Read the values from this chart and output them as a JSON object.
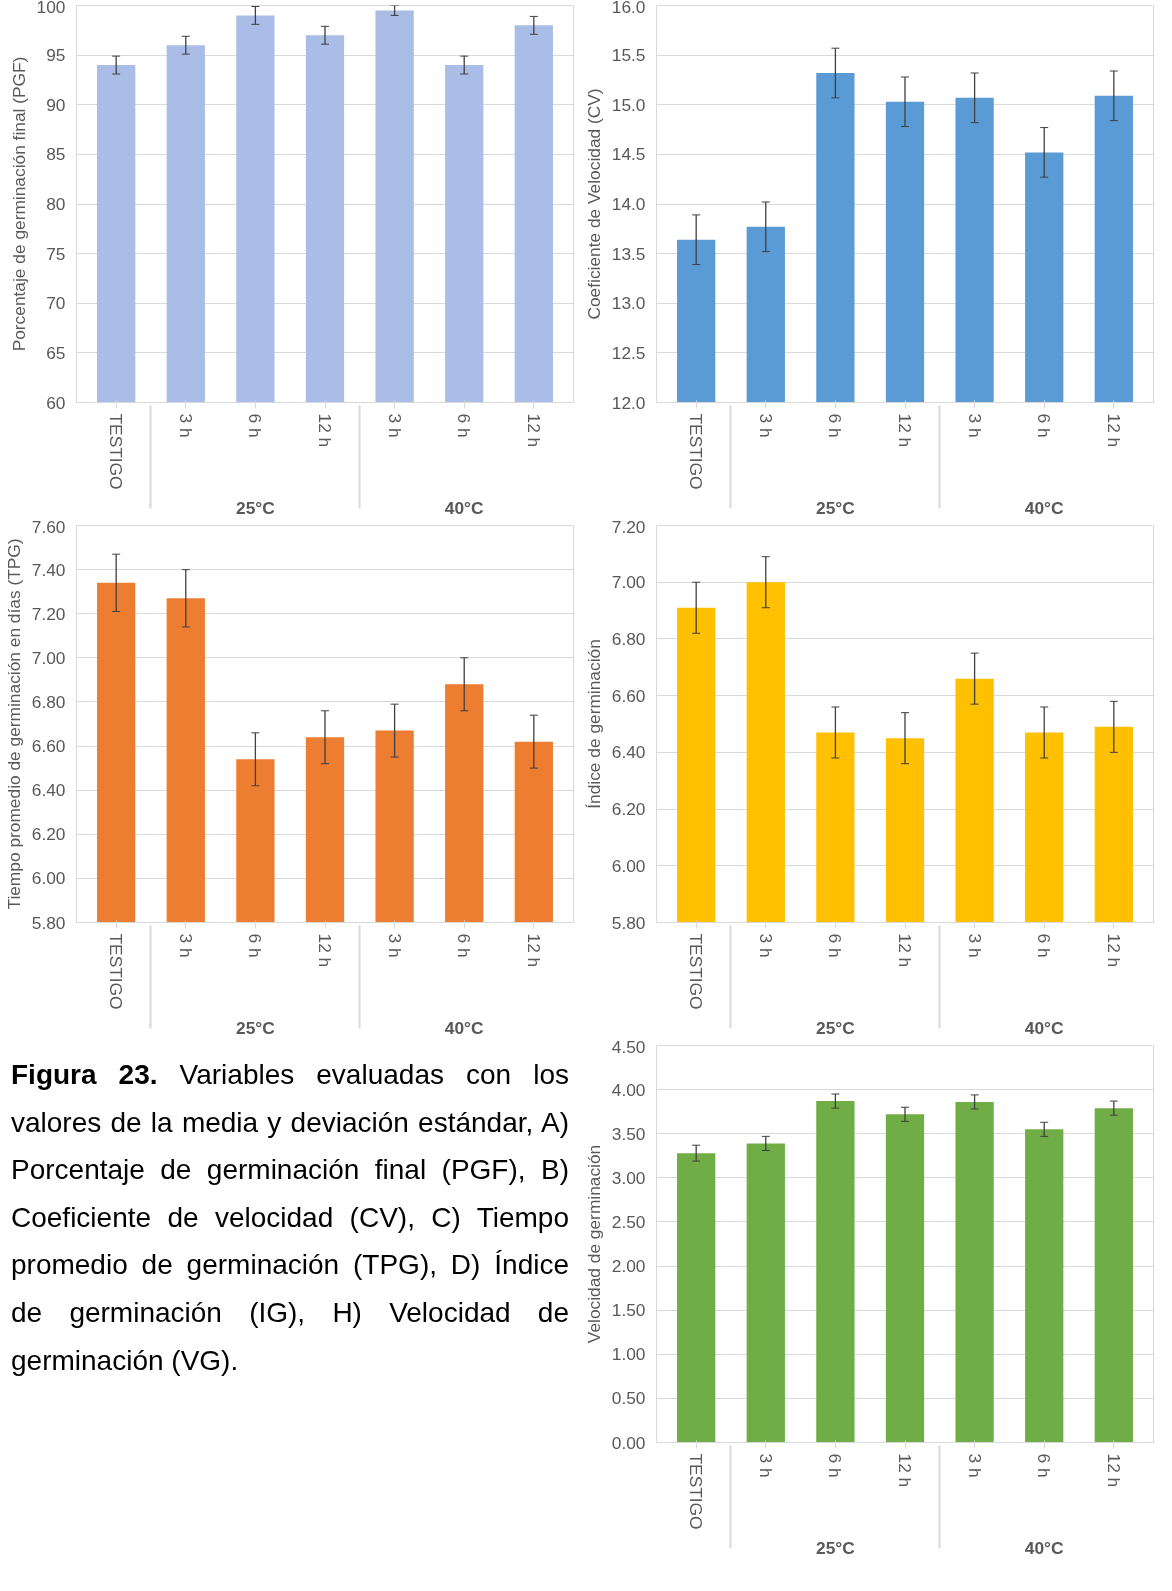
{
  "chart_data": [
    {
      "type": "bar",
      "ylabel": "Porcentaje de germinación final (PGF)",
      "categories": [
        "TESTIGO",
        "3 h",
        "6 h",
        "12 h",
        "3 h",
        "6 h",
        "12 h"
      ],
      "annotations": [
        "25°C",
        "40°C"
      ],
      "color": "#a9bde6",
      "values": [
        94,
        96,
        99,
        97,
        99.5,
        94,
        98
      ],
      "errors": [
        0.9,
        0.9,
        0.9,
        0.9,
        0.5,
        0.9,
        0.9
      ],
      "ylim": [
        60,
        100
      ],
      "yticks": [
        60,
        65,
        70,
        75,
        80,
        85,
        90,
        95,
        100
      ],
      "grid": "y"
    },
    {
      "type": "bar",
      "ylabel": "Coeficiente de Velocidad (CV)",
      "categories": [
        "TESTIGO",
        "3 h",
        "6 h",
        "12 h",
        "3 h",
        "6 h",
        "12 h"
      ],
      "annotations": [
        "25°C",
        "40°C"
      ],
      "color": "#5b9bd5",
      "values": [
        13.64,
        13.77,
        15.32,
        15.03,
        15.07,
        14.52,
        15.09
      ],
      "errors": [
        0.25,
        0.25,
        0.25,
        0.25,
        0.25,
        0.25,
        0.25
      ],
      "ylim": [
        12,
        16
      ],
      "yticks": [
        {
          "value": 12,
          "label": "12.0"
        },
        12.5,
        {
          "value": 13,
          "label": "13.0"
        },
        13.5,
        {
          "value": 14,
          "label": "14.0"
        },
        14.5,
        {
          "value": 15,
          "label": "15.0"
        },
        15.5,
        {
          "value": 16,
          "label": "16.0"
        }
      ],
      "grid": "y"
    },
    {
      "type": "bar",
      "ylabel": "Tiempo promedio de germinación en días (TPG)",
      "categories": [
        "TESTIGO",
        "3 h",
        "6 h",
        "12 h",
        "3 h",
        "6 h",
        "12 h"
      ],
      "annotations": [
        "25°C",
        "40°C"
      ],
      "color": "#ed7d31",
      "values": [
        7.34,
        7.27,
        6.54,
        6.64,
        6.67,
        6.88,
        6.62
      ],
      "errors": [
        0.13,
        0.13,
        0.12,
        0.12,
        0.12,
        0.12,
        0.12
      ],
      "ylim": [
        5.8,
        7.6
      ],
      "yticks": [
        {
          "value": 5.8,
          "label": "5.80"
        },
        {
          "value": 6.0,
          "label": "6.00"
        },
        {
          "value": 6.2,
          "label": "6.20"
        },
        {
          "value": 6.4,
          "label": "6.40"
        },
        {
          "value": 6.6,
          "label": "6.60"
        },
        {
          "value": 6.8,
          "label": "6.80"
        },
        {
          "value": 7.0,
          "label": "7.00"
        },
        {
          "value": 7.2,
          "label": "7.20"
        },
        {
          "value": 7.4,
          "label": "7.40"
        },
        {
          "value": 7.6,
          "label": "7.60"
        }
      ],
      "grid": "y"
    },
    {
      "type": "bar",
      "ylabel": "Índice de germinación",
      "categories": [
        "TESTIGO",
        "3 h",
        "6 h",
        "12 h",
        "3 h",
        "6 h",
        "12 h"
      ],
      "annotations": [
        "25°C",
        "40°C"
      ],
      "color": "#ffc000",
      "values": [
        6.91,
        7.0,
        6.47,
        6.45,
        6.66,
        6.47,
        6.49
      ],
      "errors": [
        0.09,
        0.09,
        0.09,
        0.09,
        0.09,
        0.09,
        0.09
      ],
      "ylim": [
        5.8,
        7.2
      ],
      "yticks": [
        {
          "value": 5.8,
          "label": "5.80"
        },
        {
          "value": 6.0,
          "label": "6.00"
        },
        {
          "value": 6.2,
          "label": "6.20"
        },
        {
          "value": 6.4,
          "label": "6.40"
        },
        {
          "value": 6.6,
          "label": "6.60"
        },
        {
          "value": 6.8,
          "label": "6.80"
        },
        {
          "value": 7.0,
          "label": "7.00"
        },
        {
          "value": 7.2,
          "label": "7.20"
        }
      ],
      "grid": "y"
    },
    {
      "type": "other",
      "title": "Figura 23.",
      "annotations": [
        "Variables evaluadas con los valores de la media y deviación estándar, A) Porcentaje de germinación final (PGF), B) Coeficiente de velocidad (CV), C) Tiempo promedio de germinación (TPG), D) Índice de germinación (IG), H) Velocidad de germinación (VG)."
      ]
    },
    {
      "type": "bar",
      "ylabel": "Velocidad de germinación",
      "categories": [
        "TESTIGO",
        "3 h",
        "6 h",
        "12 h",
        "3 h",
        "6 h",
        "12 h"
      ],
      "annotations": [
        "25°C",
        "40°C"
      ],
      "color": "#70ad47",
      "values": [
        3.28,
        3.39,
        3.87,
        3.72,
        3.86,
        3.55,
        3.79
      ],
      "errors": [
        0.09,
        0.08,
        0.08,
        0.08,
        0.08,
        0.08,
        0.08
      ],
      "ylim": [
        0,
        4.5
      ],
      "yticks": [
        {
          "value": 0,
          "label": "0.00"
        },
        {
          "value": 0.5,
          "label": "0.50"
        },
        {
          "value": 1,
          "label": "1.00"
        },
        {
          "value": 1.5,
          "label": "1.50"
        },
        {
          "value": 2,
          "label": "2.00"
        },
        {
          "value": 2.5,
          "label": "2.50"
        },
        {
          "value": 3,
          "label": "3.00"
        },
        {
          "value": 3.5,
          "label": "3.50"
        },
        {
          "value": 4,
          "label": "4.00"
        },
        {
          "value": 4.5,
          "label": "4.50"
        }
      ],
      "grid": "y"
    }
  ]
}
